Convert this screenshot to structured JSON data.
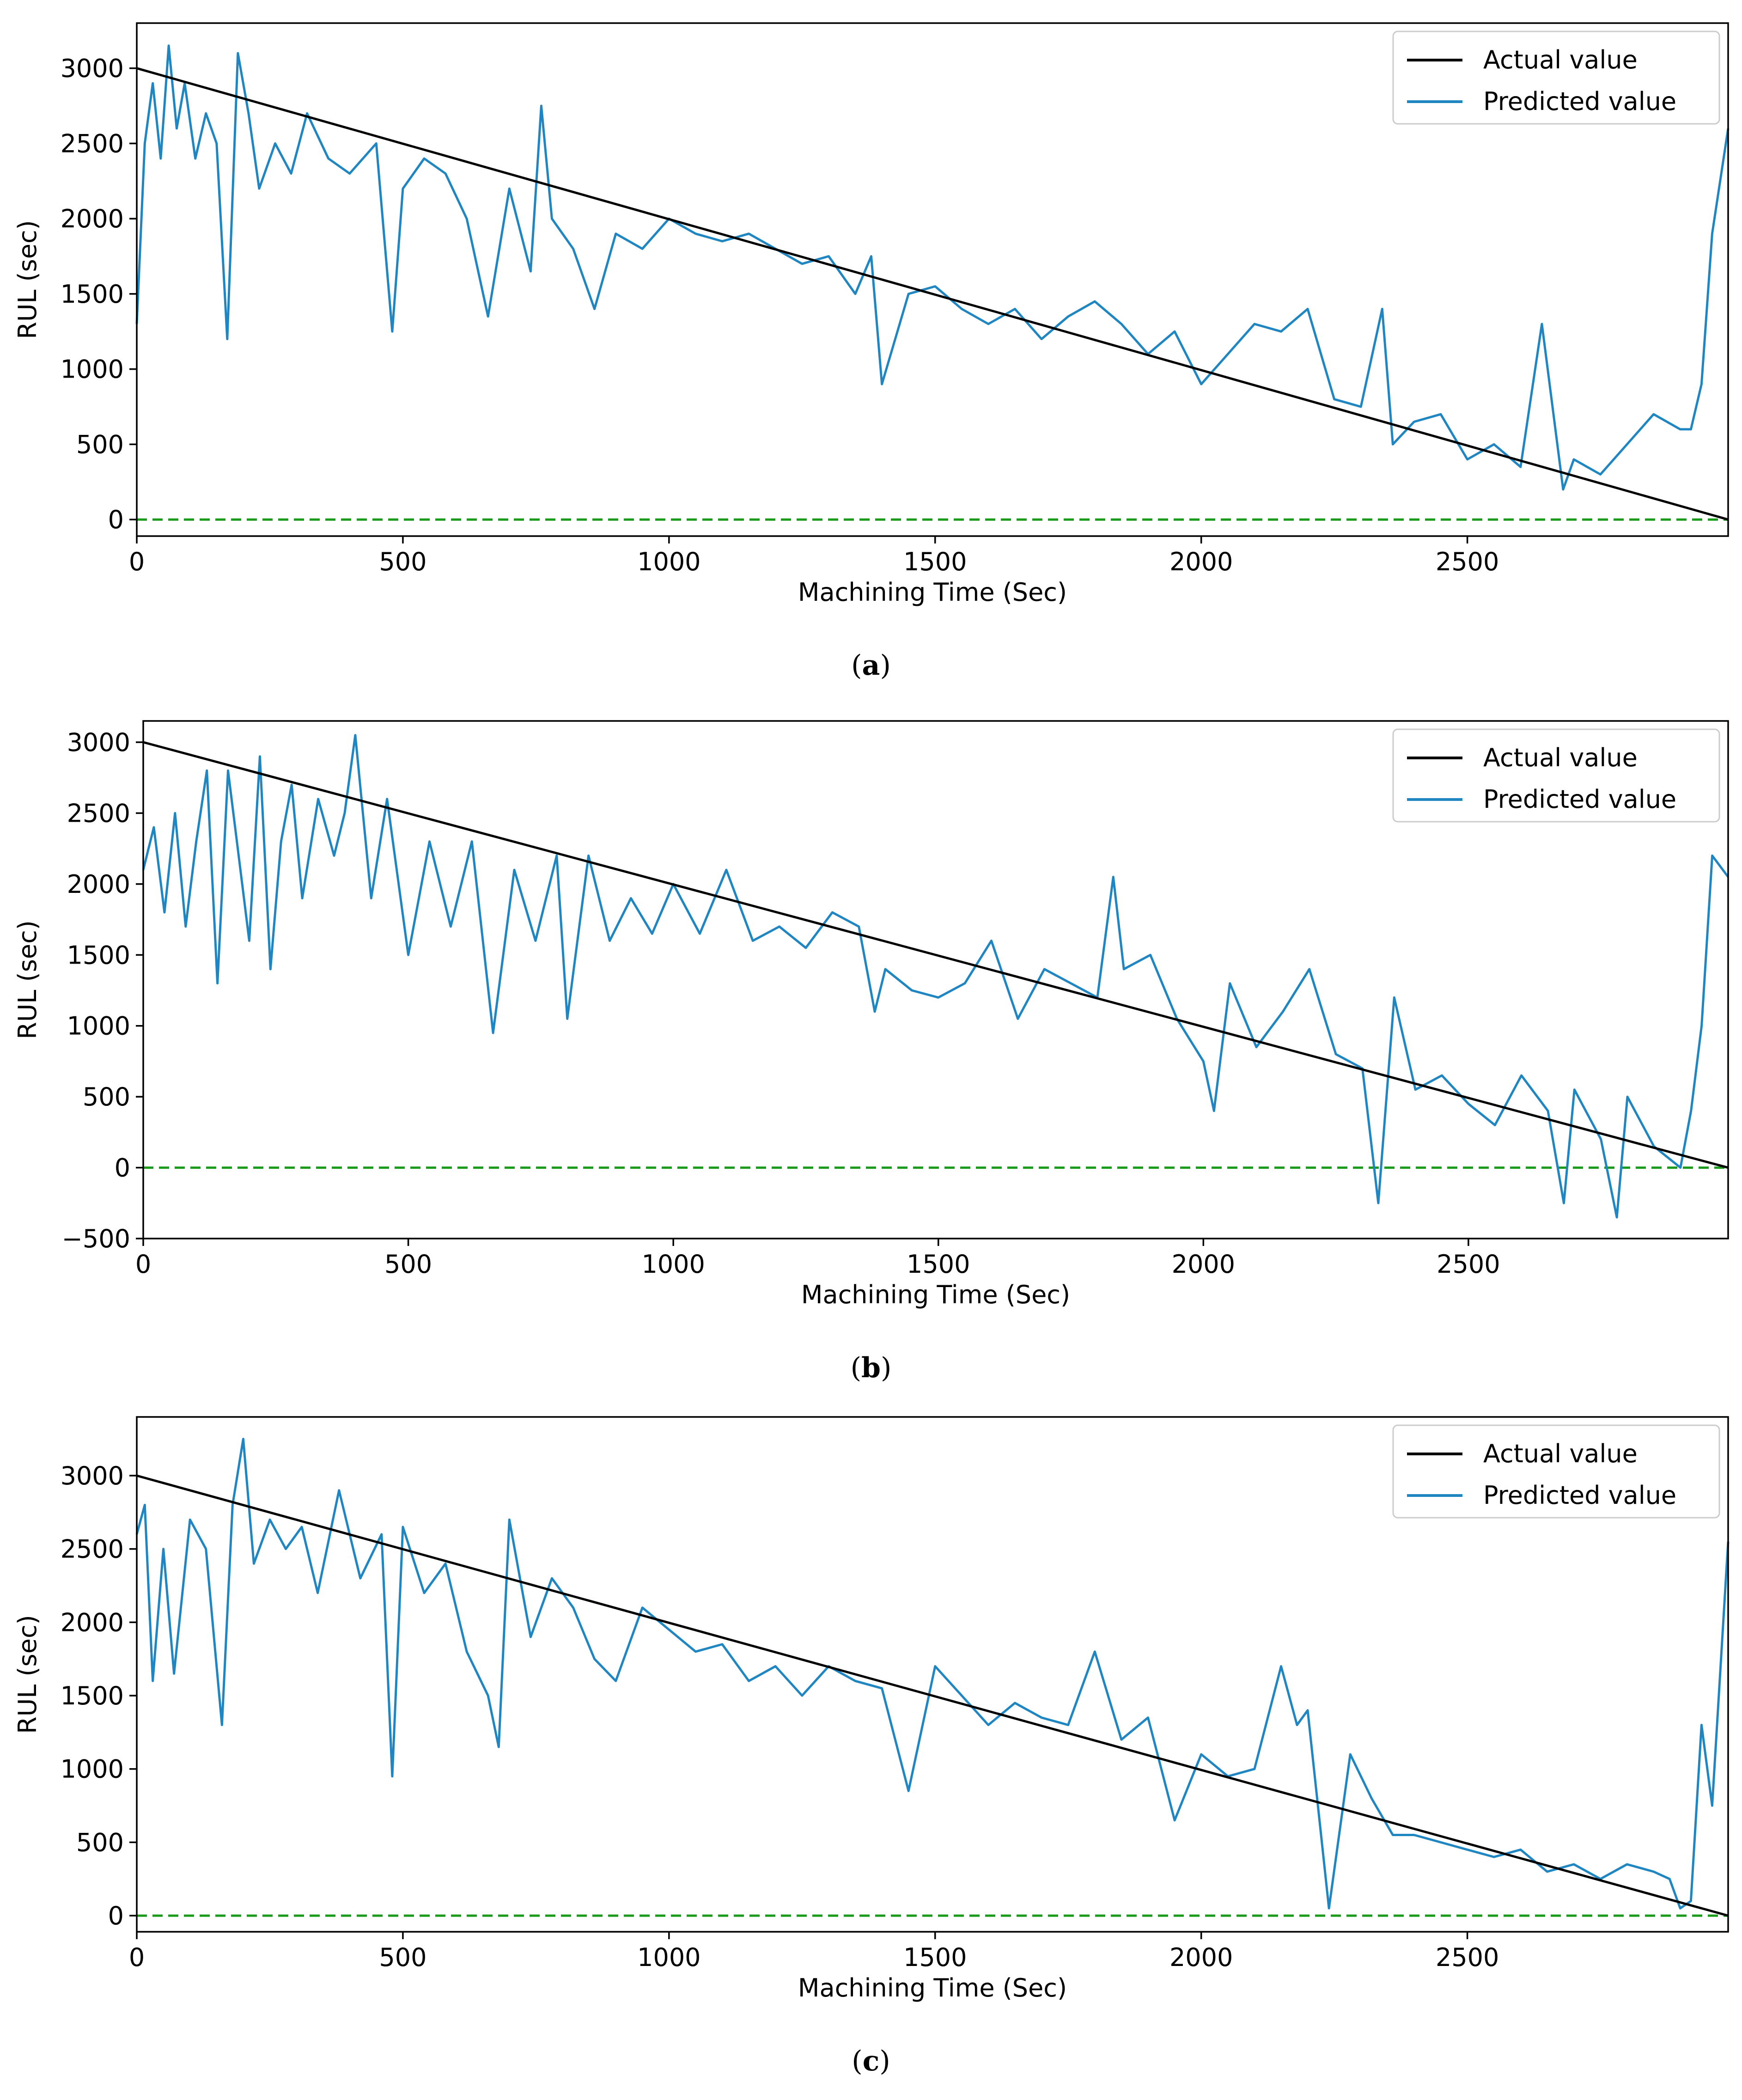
{
  "colors": {
    "actual": "#000000",
    "predicted": "#1f86c1",
    "zero_line": "#1a9a1a",
    "axes": "#000000",
    "legend_border": "#cccccc"
  },
  "chart_data": [
    {
      "type": "line",
      "panel_label": "a",
      "xlabel": "Machining Time (Sec)",
      "ylabel": "RUL (sec)",
      "xlim": [
        0,
        2990
      ],
      "ylim": [
        -110,
        3300
      ],
      "xticks": [
        0,
        500,
        1000,
        1500,
        2000,
        2500
      ],
      "yticks": [
        0,
        500,
        1000,
        1500,
        2000,
        2500,
        3000
      ],
      "grid": false,
      "legend_position": "top-right",
      "reference_line": {
        "y": 0,
        "style": "dashed"
      },
      "series": [
        {
          "name": "Actual value",
          "style": "solid",
          "x": [
            0,
            2990
          ],
          "values": [
            3000,
            0
          ]
        },
        {
          "name": "Predicted value",
          "style": "solid",
          "x": [
            0,
            15,
            30,
            45,
            60,
            75,
            90,
            110,
            130,
            150,
            170,
            190,
            210,
            230,
            260,
            290,
            320,
            360,
            400,
            450,
            480,
            500,
            540,
            580,
            620,
            660,
            700,
            740,
            760,
            780,
            820,
            860,
            900,
            950,
            1000,
            1050,
            1100,
            1150,
            1200,
            1250,
            1300,
            1350,
            1380,
            1400,
            1450,
            1500,
            1550,
            1600,
            1650,
            1700,
            1750,
            1800,
            1850,
            1900,
            1950,
            2000,
            2050,
            2100,
            2150,
            2200,
            2250,
            2300,
            2340,
            2360,
            2400,
            2450,
            2500,
            2550,
            2600,
            2640,
            2680,
            2700,
            2750,
            2800,
            2850,
            2900,
            2920,
            2940,
            2960,
            2990
          ],
          "values": [
            1300,
            2500,
            2900,
            2400,
            3150,
            2600,
            2900,
            2400,
            2700,
            2500,
            1200,
            3100,
            2700,
            2200,
            2500,
            2300,
            2700,
            2400,
            2300,
            2500,
            1250,
            2200,
            2400,
            2300,
            2000,
            1350,
            2200,
            1650,
            2750,
            2000,
            1800,
            1400,
            1900,
            1800,
            2000,
            1900,
            1850,
            1900,
            1800,
            1700,
            1750,
            1500,
            1750,
            900,
            1500,
            1550,
            1400,
            1300,
            1400,
            1200,
            1350,
            1450,
            1300,
            1100,
            1250,
            900,
            1100,
            1300,
            1250,
            1400,
            800,
            750,
            1400,
            500,
            650,
            700,
            400,
            500,
            350,
            1300,
            200,
            400,
            300,
            500,
            700,
            600,
            600,
            900,
            1900,
            2600
          ]
        }
      ]
    },
    {
      "type": "line",
      "panel_label": "b",
      "xlabel": "Machining Time (Sec)",
      "ylabel": "RUL (sec)",
      "xlim": [
        0,
        2990
      ],
      "ylim": [
        -500,
        3150
      ],
      "xticks": [
        0,
        500,
        1000,
        1500,
        2000,
        2500
      ],
      "yticks": [
        -500,
        0,
        500,
        1000,
        1500,
        2000,
        2500,
        3000
      ],
      "grid": false,
      "legend_position": "top-right",
      "reference_line": {
        "y": 0,
        "style": "dashed"
      },
      "series": [
        {
          "name": "Actual value",
          "style": "solid",
          "x": [
            0,
            2990
          ],
          "values": [
            3000,
            0
          ]
        },
        {
          "name": "Predicted value",
          "style": "solid",
          "x": [
            0,
            20,
            40,
            60,
            80,
            100,
            120,
            140,
            160,
            180,
            200,
            220,
            240,
            260,
            280,
            300,
            330,
            360,
            380,
            400,
            430,
            460,
            500,
            540,
            580,
            620,
            660,
            700,
            740,
            780,
            800,
            840,
            880,
            920,
            960,
            1000,
            1050,
            1100,
            1150,
            1200,
            1250,
            1300,
            1350,
            1380,
            1400,
            1450,
            1500,
            1550,
            1600,
            1650,
            1700,
            1750,
            1800,
            1830,
            1850,
            1900,
            1950,
            2000,
            2020,
            2050,
            2100,
            2150,
            2200,
            2250,
            2300,
            2330,
            2360,
            2400,
            2450,
            2500,
            2550,
            2600,
            2650,
            2680,
            2700,
            2750,
            2780,
            2800,
            2850,
            2900,
            2920,
            2940,
            2960,
            2990
          ],
          "values": [
            2100,
            2400,
            1800,
            2500,
            1700,
            2300,
            2800,
            1300,
            2800,
            2200,
            1600,
            2900,
            1400,
            2300,
            2700,
            1900,
            2600,
            2200,
            2500,
            3050,
            1900,
            2600,
            1500,
            2300,
            1700,
            2300,
            950,
            2100,
            1600,
            2200,
            1050,
            2200,
            1600,
            1900,
            1650,
            2000,
            1650,
            2100,
            1600,
            1700,
            1550,
            1800,
            1700,
            1100,
            1400,
            1250,
            1200,
            1300,
            1600,
            1050,
            1400,
            1300,
            1200,
            2050,
            1400,
            1500,
            1050,
            750,
            400,
            1300,
            850,
            1100,
            1400,
            800,
            700,
            -250,
            1200,
            550,
            650,
            450,
            300,
            650,
            400,
            -250,
            550,
            200,
            -350,
            500,
            150,
            0,
            400,
            1000,
            2200,
            2050
          ]
        }
      ]
    },
    {
      "type": "line",
      "panel_label": "c",
      "xlabel": "Machining Time (Sec)",
      "ylabel": "RUL (sec)",
      "xlim": [
        0,
        2990
      ],
      "ylim": [
        -110,
        3400
      ],
      "xticks": [
        0,
        500,
        1000,
        1500,
        2000,
        2500
      ],
      "yticks": [
        0,
        500,
        1000,
        1500,
        2000,
        2500,
        3000
      ],
      "grid": false,
      "legend_position": "top-right",
      "reference_line": {
        "y": 0,
        "style": "dashed"
      },
      "series": [
        {
          "name": "Actual value",
          "style": "solid",
          "x": [
            0,
            2990
          ],
          "values": [
            3000,
            0
          ]
        },
        {
          "name": "Predicted value",
          "style": "solid",
          "x": [
            0,
            15,
            30,
            50,
            70,
            100,
            130,
            160,
            180,
            200,
            220,
            250,
            280,
            310,
            340,
            380,
            420,
            460,
            480,
            500,
            540,
            580,
            620,
            660,
            680,
            700,
            740,
            780,
            820,
            860,
            900,
            950,
            1000,
            1050,
            1100,
            1150,
            1200,
            1250,
            1300,
            1350,
            1400,
            1450,
            1500,
            1550,
            1600,
            1650,
            1700,
            1750,
            1800,
            1850,
            1900,
            1950,
            2000,
            2050,
            2100,
            2150,
            2180,
            2200,
            2240,
            2280,
            2320,
            2360,
            2400,
            2450,
            2500,
            2550,
            2600,
            2650,
            2700,
            2750,
            2800,
            2850,
            2880,
            2900,
            2920,
            2940,
            2960,
            2990
          ],
          "values": [
            2600,
            2800,
            1600,
            2500,
            1650,
            2700,
            2500,
            1300,
            2800,
            3250,
            2400,
            2700,
            2500,
            2650,
            2200,
            2900,
            2300,
            2600,
            950,
            2650,
            2200,
            2400,
            1800,
            1500,
            1150,
            2700,
            1900,
            2300,
            2100,
            1750,
            1600,
            2100,
            1950,
            1800,
            1850,
            1600,
            1700,
            1500,
            1700,
            1600,
            1550,
            850,
            1700,
            1500,
            1300,
            1450,
            1350,
            1300,
            1800,
            1200,
            1350,
            650,
            1100,
            950,
            1000,
            1700,
            1300,
            1400,
            50,
            1100,
            800,
            550,
            550,
            500,
            450,
            400,
            450,
            300,
            350,
            250,
            350,
            300,
            250,
            50,
            100,
            1300,
            750,
            2550
          ]
        }
      ]
    }
  ]
}
